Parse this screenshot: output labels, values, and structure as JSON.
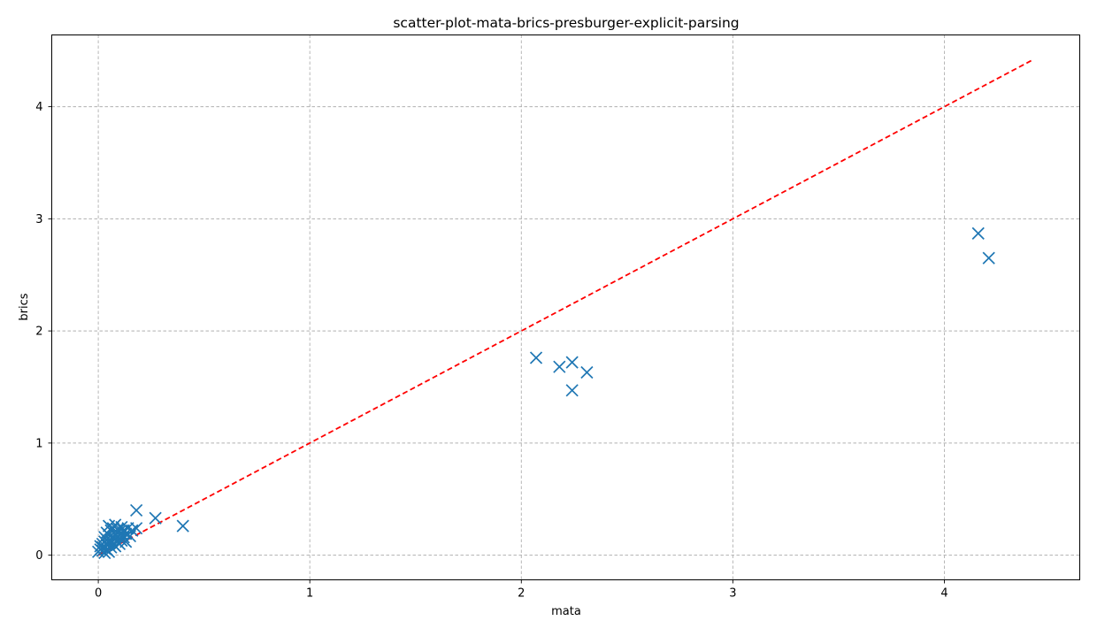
{
  "chart_data": {
    "type": "scatter",
    "title": "scatter-plot-mata-brics-presburger-explicit-parsing",
    "xlabel": "mata",
    "ylabel": "brics",
    "xlim": [
      -0.22,
      4.64
    ],
    "ylim": [
      -0.22,
      4.64
    ],
    "x_ticks": [
      0,
      1,
      2,
      3,
      4
    ],
    "y_ticks": [
      0,
      1,
      2,
      3,
      4
    ],
    "grid": true,
    "marker": "x",
    "series": [
      {
        "color": "#1f77b4",
        "points": [
          [
            0.0,
            0.03
          ],
          [
            0.01,
            0.05
          ],
          [
            0.01,
            0.08
          ],
          [
            0.02,
            0.04
          ],
          [
            0.02,
            0.07
          ],
          [
            0.02,
            0.1
          ],
          [
            0.03,
            0.02
          ],
          [
            0.03,
            0.06
          ],
          [
            0.03,
            0.12
          ],
          [
            0.03,
            0.16
          ],
          [
            0.04,
            0.05
          ],
          [
            0.04,
            0.09
          ],
          [
            0.04,
            0.14
          ],
          [
            0.04,
            0.2
          ],
          [
            0.05,
            0.03
          ],
          [
            0.05,
            0.11
          ],
          [
            0.05,
            0.18
          ],
          [
            0.05,
            0.26
          ],
          [
            0.06,
            0.07
          ],
          [
            0.06,
            0.13
          ],
          [
            0.06,
            0.22
          ],
          [
            0.07,
            0.1
          ],
          [
            0.07,
            0.16
          ],
          [
            0.07,
            0.24
          ],
          [
            0.08,
            0.08
          ],
          [
            0.08,
            0.14
          ],
          [
            0.08,
            0.19
          ],
          [
            0.08,
            0.27
          ],
          [
            0.09,
            0.12
          ],
          [
            0.09,
            0.17
          ],
          [
            0.09,
            0.23
          ],
          [
            0.1,
            0.1
          ],
          [
            0.1,
            0.15
          ],
          [
            0.1,
            0.21
          ],
          [
            0.11,
            0.13
          ],
          [
            0.11,
            0.19
          ],
          [
            0.11,
            0.25
          ],
          [
            0.12,
            0.16
          ],
          [
            0.12,
            0.22
          ],
          [
            0.13,
            0.12
          ],
          [
            0.13,
            0.19
          ],
          [
            0.14,
            0.24
          ],
          [
            0.15,
            0.17
          ],
          [
            0.16,
            0.22
          ],
          [
            0.18,
            0.24
          ],
          [
            0.18,
            0.4
          ],
          [
            0.27,
            0.33
          ],
          [
            0.4,
            0.26
          ],
          [
            2.07,
            1.76
          ],
          [
            2.18,
            1.68
          ],
          [
            2.24,
            1.72
          ],
          [
            2.24,
            1.47
          ],
          [
            2.31,
            1.63
          ],
          [
            4.16,
            2.87
          ],
          [
            4.21,
            2.65
          ]
        ]
      }
    ],
    "reference_line": {
      "color": "#ff0000",
      "style": "dashed",
      "x": [
        0,
        4.42
      ],
      "y": [
        0,
        4.42
      ]
    }
  }
}
